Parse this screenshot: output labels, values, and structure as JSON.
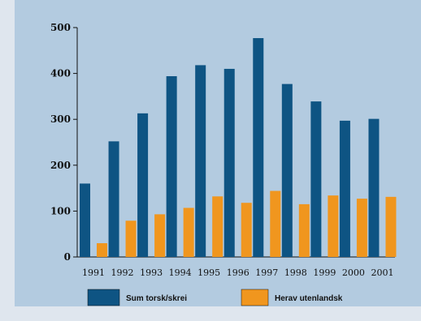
{
  "chart_data": {
    "type": "bar",
    "categories": [
      "1991",
      "1992",
      "1993",
      "1994",
      "1995",
      "1996",
      "1997",
      "1998",
      "1999",
      "2000",
      "2001"
    ],
    "series": [
      {
        "name": "Sum torsk/skrei",
        "color": "#0e5483",
        "values": [
          160,
          252,
          313,
          394,
          418,
          410,
          477,
          377,
          339,
          297,
          301
        ]
      },
      {
        "name": "Herav utenlandsk",
        "color": "#f0961e",
        "values": [
          30,
          79,
          93,
          107,
          132,
          118,
          144,
          115,
          134,
          127,
          131
        ]
      }
    ],
    "yticks": [
      "0",
      "100",
      "200",
      "300",
      "400",
      "500"
    ],
    "ylim": [
      0,
      500
    ],
    "grid": false,
    "legend_position": "bottom"
  }
}
